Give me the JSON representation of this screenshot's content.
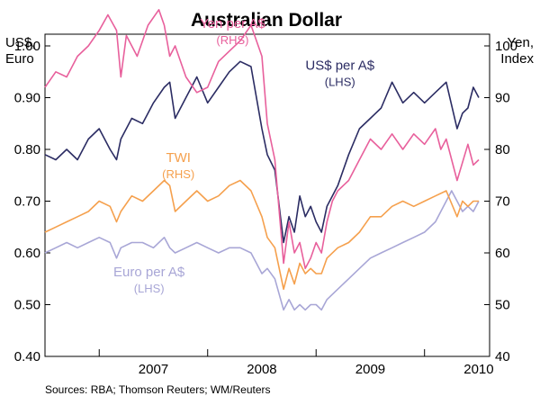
{
  "chart_data": {
    "type": "line",
    "title": "Australian Dollar",
    "ylabel_left": [
      "US$,",
      "Euro"
    ],
    "ylabel_right": [
      "Yen,",
      "Index"
    ],
    "ylim_left": [
      0.4,
      1.0
    ],
    "ylim_right": [
      40,
      100
    ],
    "yticks_left": [
      "1.00",
      "0.90",
      "0.80",
      "0.70",
      "0.60",
      "0.50",
      "0.40"
    ],
    "yticks_right": [
      "100",
      "90",
      "80",
      "70",
      "60",
      "50",
      "40"
    ],
    "x_range": [
      2006.5,
      2010.6
    ],
    "x_categories": [
      "2007",
      "2008",
      "2009",
      "2010"
    ],
    "year_dividers": [
      2007.0,
      2008.0,
      2009.0,
      2010.0
    ],
    "source": "Sources: RBA; Thomson Reuters; WM/Reuters",
    "series": [
      {
        "name": "Yen per A$",
        "axis": "RHS",
        "label": "Yen per A$",
        "sublabel": "(RHS)",
        "color": "#e8609c",
        "x": [
          2006.5,
          2006.6,
          2006.7,
          2006.8,
          2006.9,
          2007.0,
          2007.08,
          2007.16,
          2007.2,
          2007.25,
          2007.35,
          2007.45,
          2007.55,
          2007.6,
          2007.65,
          2007.7,
          2007.8,
          2007.9,
          2008.0,
          2008.1,
          2008.2,
          2008.3,
          2008.4,
          2008.5,
          2008.55,
          2008.62,
          2008.7,
          2008.75,
          2008.8,
          2008.85,
          2008.9,
          2008.95,
          2009.0,
          2009.05,
          2009.1,
          2009.15,
          2009.2,
          2009.3,
          2009.4,
          2009.5,
          2009.6,
          2009.7,
          2009.8,
          2009.9,
          2010.0,
          2010.1,
          2010.15,
          2010.2,
          2010.3,
          2010.4,
          2010.45,
          2010.5
        ],
        "values": [
          92,
          95,
          94,
          98,
          100,
          103,
          106,
          103,
          94,
          102,
          98,
          104,
          107,
          104,
          98,
          100,
          94,
          91,
          92,
          97,
          99,
          101,
          104,
          98,
          85,
          78,
          58,
          66,
          60,
          62,
          57,
          59,
          62,
          60,
          66,
          70,
          72,
          74,
          78,
          82,
          80,
          83,
          80,
          83,
          81,
          84,
          80,
          82,
          74,
          81,
          77,
          78
        ]
      },
      {
        "name": "US$ per A$",
        "axis": "LHS",
        "label": "US$ per A$",
        "sublabel": "(LHS)",
        "color": "#2b2c63",
        "x": [
          2006.5,
          2006.6,
          2006.7,
          2006.8,
          2006.9,
          2007.0,
          2007.1,
          2007.16,
          2007.2,
          2007.3,
          2007.4,
          2007.5,
          2007.6,
          2007.65,
          2007.7,
          2007.8,
          2007.9,
          2008.0,
          2008.1,
          2008.2,
          2008.3,
          2008.4,
          2008.5,
          2008.55,
          2008.62,
          2008.7,
          2008.75,
          2008.8,
          2008.85,
          2008.9,
          2008.95,
          2009.0,
          2009.05,
          2009.1,
          2009.2,
          2009.3,
          2009.4,
          2009.5,
          2009.6,
          2009.7,
          2009.8,
          2009.9,
          2010.0,
          2010.1,
          2010.2,
          2010.3,
          2010.35,
          2010.4,
          2010.45,
          2010.5
        ],
        "values": [
          0.79,
          0.78,
          0.8,
          0.78,
          0.82,
          0.84,
          0.8,
          0.78,
          0.82,
          0.86,
          0.85,
          0.89,
          0.92,
          0.93,
          0.86,
          0.9,
          0.94,
          0.89,
          0.92,
          0.95,
          0.97,
          0.96,
          0.84,
          0.79,
          0.76,
          0.62,
          0.67,
          0.64,
          0.71,
          0.67,
          0.69,
          0.66,
          0.64,
          0.69,
          0.73,
          0.79,
          0.84,
          0.86,
          0.88,
          0.93,
          0.89,
          0.91,
          0.89,
          0.91,
          0.93,
          0.84,
          0.87,
          0.88,
          0.92,
          0.9
        ]
      },
      {
        "name": "TWI",
        "axis": "RHS",
        "label": "TWI",
        "sublabel": "(RHS)",
        "color": "#f5a04d",
        "x": [
          2006.5,
          2006.6,
          2006.7,
          2006.8,
          2006.9,
          2007.0,
          2007.1,
          2007.16,
          2007.2,
          2007.3,
          2007.4,
          2007.5,
          2007.6,
          2007.65,
          2007.7,
          2007.8,
          2007.9,
          2008.0,
          2008.1,
          2008.2,
          2008.3,
          2008.4,
          2008.5,
          2008.55,
          2008.62,
          2008.7,
          2008.75,
          2008.8,
          2008.85,
          2008.9,
          2008.95,
          2009.0,
          2009.05,
          2009.1,
          2009.2,
          2009.3,
          2009.4,
          2009.5,
          2009.6,
          2009.7,
          2009.8,
          2009.9,
          2010.0,
          2010.1,
          2010.2,
          2010.3,
          2010.35,
          2010.4,
          2010.45,
          2010.5
        ],
        "values": [
          64,
          65,
          66,
          67,
          68,
          70,
          69,
          66,
          68,
          71,
          70,
          72,
          74,
          73,
          68,
          70,
          72,
          70,
          71,
          73,
          74,
          72,
          67,
          63,
          61,
          53,
          57,
          54,
          58,
          56,
          57,
          56,
          56,
          59,
          61,
          62,
          64,
          67,
          67,
          69,
          70,
          69,
          70,
          71,
          72,
          67,
          70,
          69,
          70,
          70
        ]
      },
      {
        "name": "Euro per A$",
        "axis": "LHS",
        "label": "Euro per A$",
        "sublabel": "(LHS)",
        "color": "#a8a6d6",
        "x": [
          2006.5,
          2006.6,
          2006.7,
          2006.8,
          2006.9,
          2007.0,
          2007.1,
          2007.16,
          2007.2,
          2007.3,
          2007.4,
          2007.5,
          2007.6,
          2007.65,
          2007.7,
          2007.8,
          2007.9,
          2008.0,
          2008.1,
          2008.2,
          2008.3,
          2008.4,
          2008.5,
          2008.55,
          2008.62,
          2008.7,
          2008.75,
          2008.8,
          2008.85,
          2008.9,
          2008.95,
          2009.0,
          2009.05,
          2009.1,
          2009.2,
          2009.3,
          2009.4,
          2009.5,
          2009.6,
          2009.7,
          2009.8,
          2009.9,
          2010.0,
          2010.1,
          2010.2,
          2010.25,
          2010.3,
          2010.35,
          2010.4,
          2010.45,
          2010.5
        ],
        "values": [
          0.6,
          0.61,
          0.62,
          0.61,
          0.62,
          0.63,
          0.62,
          0.59,
          0.61,
          0.62,
          0.62,
          0.61,
          0.63,
          0.61,
          0.6,
          0.61,
          0.62,
          0.61,
          0.6,
          0.61,
          0.61,
          0.6,
          0.56,
          0.57,
          0.55,
          0.49,
          0.51,
          0.49,
          0.5,
          0.49,
          0.5,
          0.5,
          0.49,
          0.51,
          0.53,
          0.55,
          0.57,
          0.59,
          0.6,
          0.61,
          0.62,
          0.63,
          0.64,
          0.66,
          0.7,
          0.72,
          0.7,
          0.68,
          0.69,
          0.68,
          0.7
        ]
      }
    ]
  }
}
